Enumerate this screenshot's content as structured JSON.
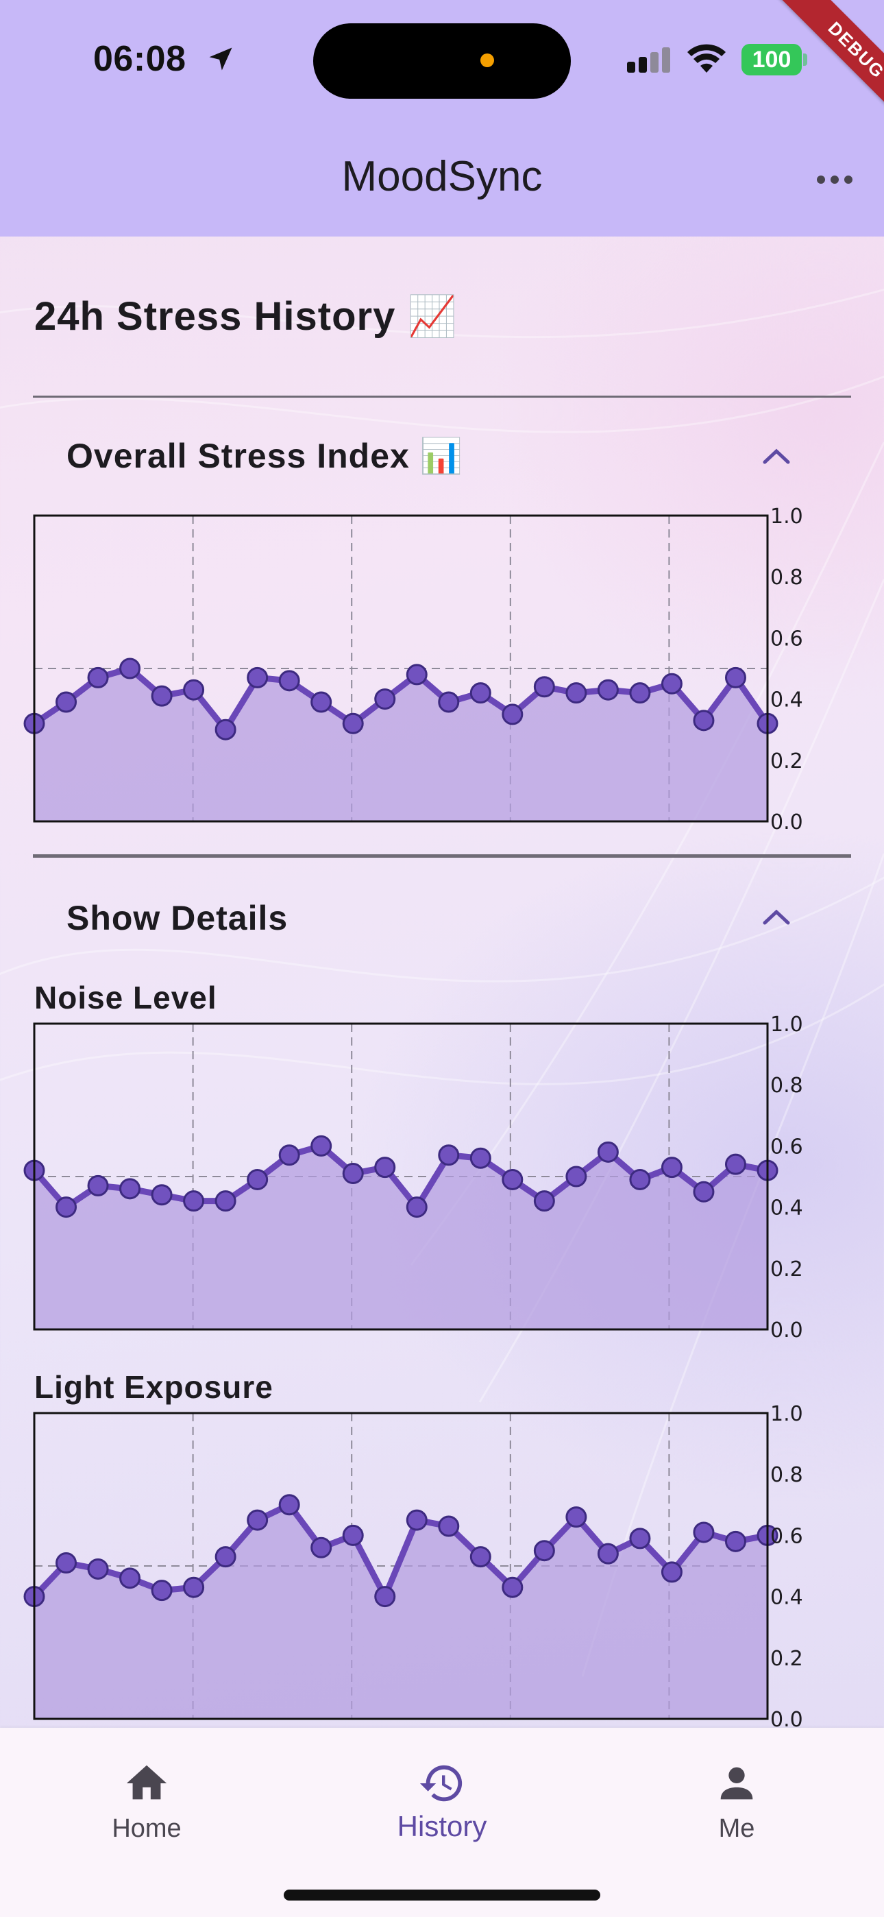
{
  "status_bar": {
    "time": "06:08",
    "battery": "100",
    "debug_banner": "DEBUG"
  },
  "app_bar": {
    "title": "MoodSync"
  },
  "page": {
    "title": "24h Stress History 📈"
  },
  "panels": {
    "overall": {
      "header": "Overall Stress Index 📊"
    },
    "details": {
      "header": "Show Details"
    }
  },
  "charts": {
    "overall": {
      "label": ""
    },
    "noise": {
      "label": "Noise Level"
    },
    "light": {
      "label": "Light Exposure"
    }
  },
  "chart_data": [
    {
      "type": "area",
      "title": "",
      "ylim": [
        0,
        1
      ],
      "yticks": [
        "0.0",
        "0.2",
        "0.4",
        "0.6",
        "0.8",
        "1.0"
      ],
      "grid": "dashed",
      "series": [
        {
          "values": [
            0.32,
            0.39,
            0.47,
            0.5,
            0.41,
            0.43,
            0.3,
            0.47,
            0.46,
            0.39,
            0.32,
            0.4,
            0.48,
            0.39,
            0.42,
            0.35,
            0.44,
            0.42,
            0.43,
            0.42,
            0.45,
            0.33,
            0.47,
            0.32
          ]
        }
      ]
    },
    {
      "type": "area",
      "title": "Noise Level",
      "ylim": [
        0,
        1
      ],
      "yticks": [
        "0.0",
        "0.2",
        "0.4",
        "0.6",
        "0.8",
        "1.0"
      ],
      "grid": "dashed",
      "series": [
        {
          "values": [
            0.52,
            0.4,
            0.47,
            0.46,
            0.44,
            0.42,
            0.42,
            0.49,
            0.57,
            0.6,
            0.51,
            0.53,
            0.4,
            0.57,
            0.56,
            0.49,
            0.42,
            0.5,
            0.58,
            0.49,
            0.53,
            0.45,
            0.54,
            0.52
          ]
        }
      ]
    },
    {
      "type": "area",
      "title": "Light Exposure",
      "ylim": [
        0,
        1
      ],
      "yticks": [
        "0.0",
        "0.2",
        "0.4",
        "0.6",
        "0.8",
        "1.0"
      ],
      "grid": "dashed",
      "series": [
        {
          "values": [
            0.4,
            0.51,
            0.49,
            0.46,
            0.42,
            0.43,
            0.53,
            0.65,
            0.7,
            0.56,
            0.6,
            0.4,
            0.65,
            0.63,
            0.53,
            0.43,
            0.55,
            0.66,
            0.54,
            0.59,
            0.48,
            0.61,
            0.58,
            0.6
          ]
        }
      ]
    }
  ],
  "colors": {
    "line": "#6a47b8",
    "point": "#7152bf",
    "fill": "#b29be0",
    "accent": "#5e4aa3"
  },
  "bottom_nav": {
    "items": [
      {
        "label": "Home",
        "icon": "home-icon"
      },
      {
        "label": "History",
        "icon": "history-icon"
      },
      {
        "label": "Me",
        "icon": "person-icon"
      }
    ],
    "active": "History"
  }
}
